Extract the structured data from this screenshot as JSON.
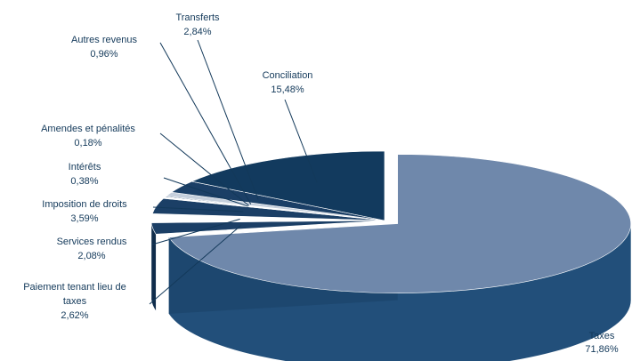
{
  "chart_data": {
    "type": "pie",
    "title": "",
    "style": "3d-exploded",
    "slices": [
      {
        "label": "Taxes",
        "value_text": "71,86%",
        "value": 71.86,
        "color": "#6f88ab",
        "side_color": "#224f7a"
      },
      {
        "label": "Paiement tenant lieu de taxes",
        "value_text": "2,62%",
        "value": 2.62,
        "color": "#1b3f66",
        "side_color": "#0f2c4b"
      },
      {
        "label": "Services rendus",
        "value_text": "2,08%",
        "value": 2.08,
        "color": "#ffffff",
        "side_color": "#c9d2de"
      },
      {
        "label": "Imposition de droits",
        "value_text": "3,59%",
        "value": 3.59,
        "color": "#1b3f66",
        "side_color": "#0f2c4b"
      },
      {
        "label": "Intérêts",
        "value_text": "0,38%",
        "value": 0.38,
        "color": "#ffffff",
        "side_color": "#c9d2de"
      },
      {
        "label": "Amendes et pénalités",
        "value_text": "0,18%",
        "value": 0.18,
        "color": "#1b3f66",
        "side_color": "#0f2c4b"
      },
      {
        "label": "Autres revenus",
        "value_text": "0,96%",
        "value": 0.96,
        "color": "#c5cfdc",
        "side_color": "#8d9db3"
      },
      {
        "label": "Transferts",
        "value_text": "2,84%",
        "value": 2.84,
        "color": "#1b3f66",
        "side_color": "#0f2c4b"
      },
      {
        "label": "Conciliation",
        "value_text": "15,48%",
        "value": 15.48,
        "color": "#123a5e",
        "side_color": "#0b2744"
      }
    ]
  }
}
